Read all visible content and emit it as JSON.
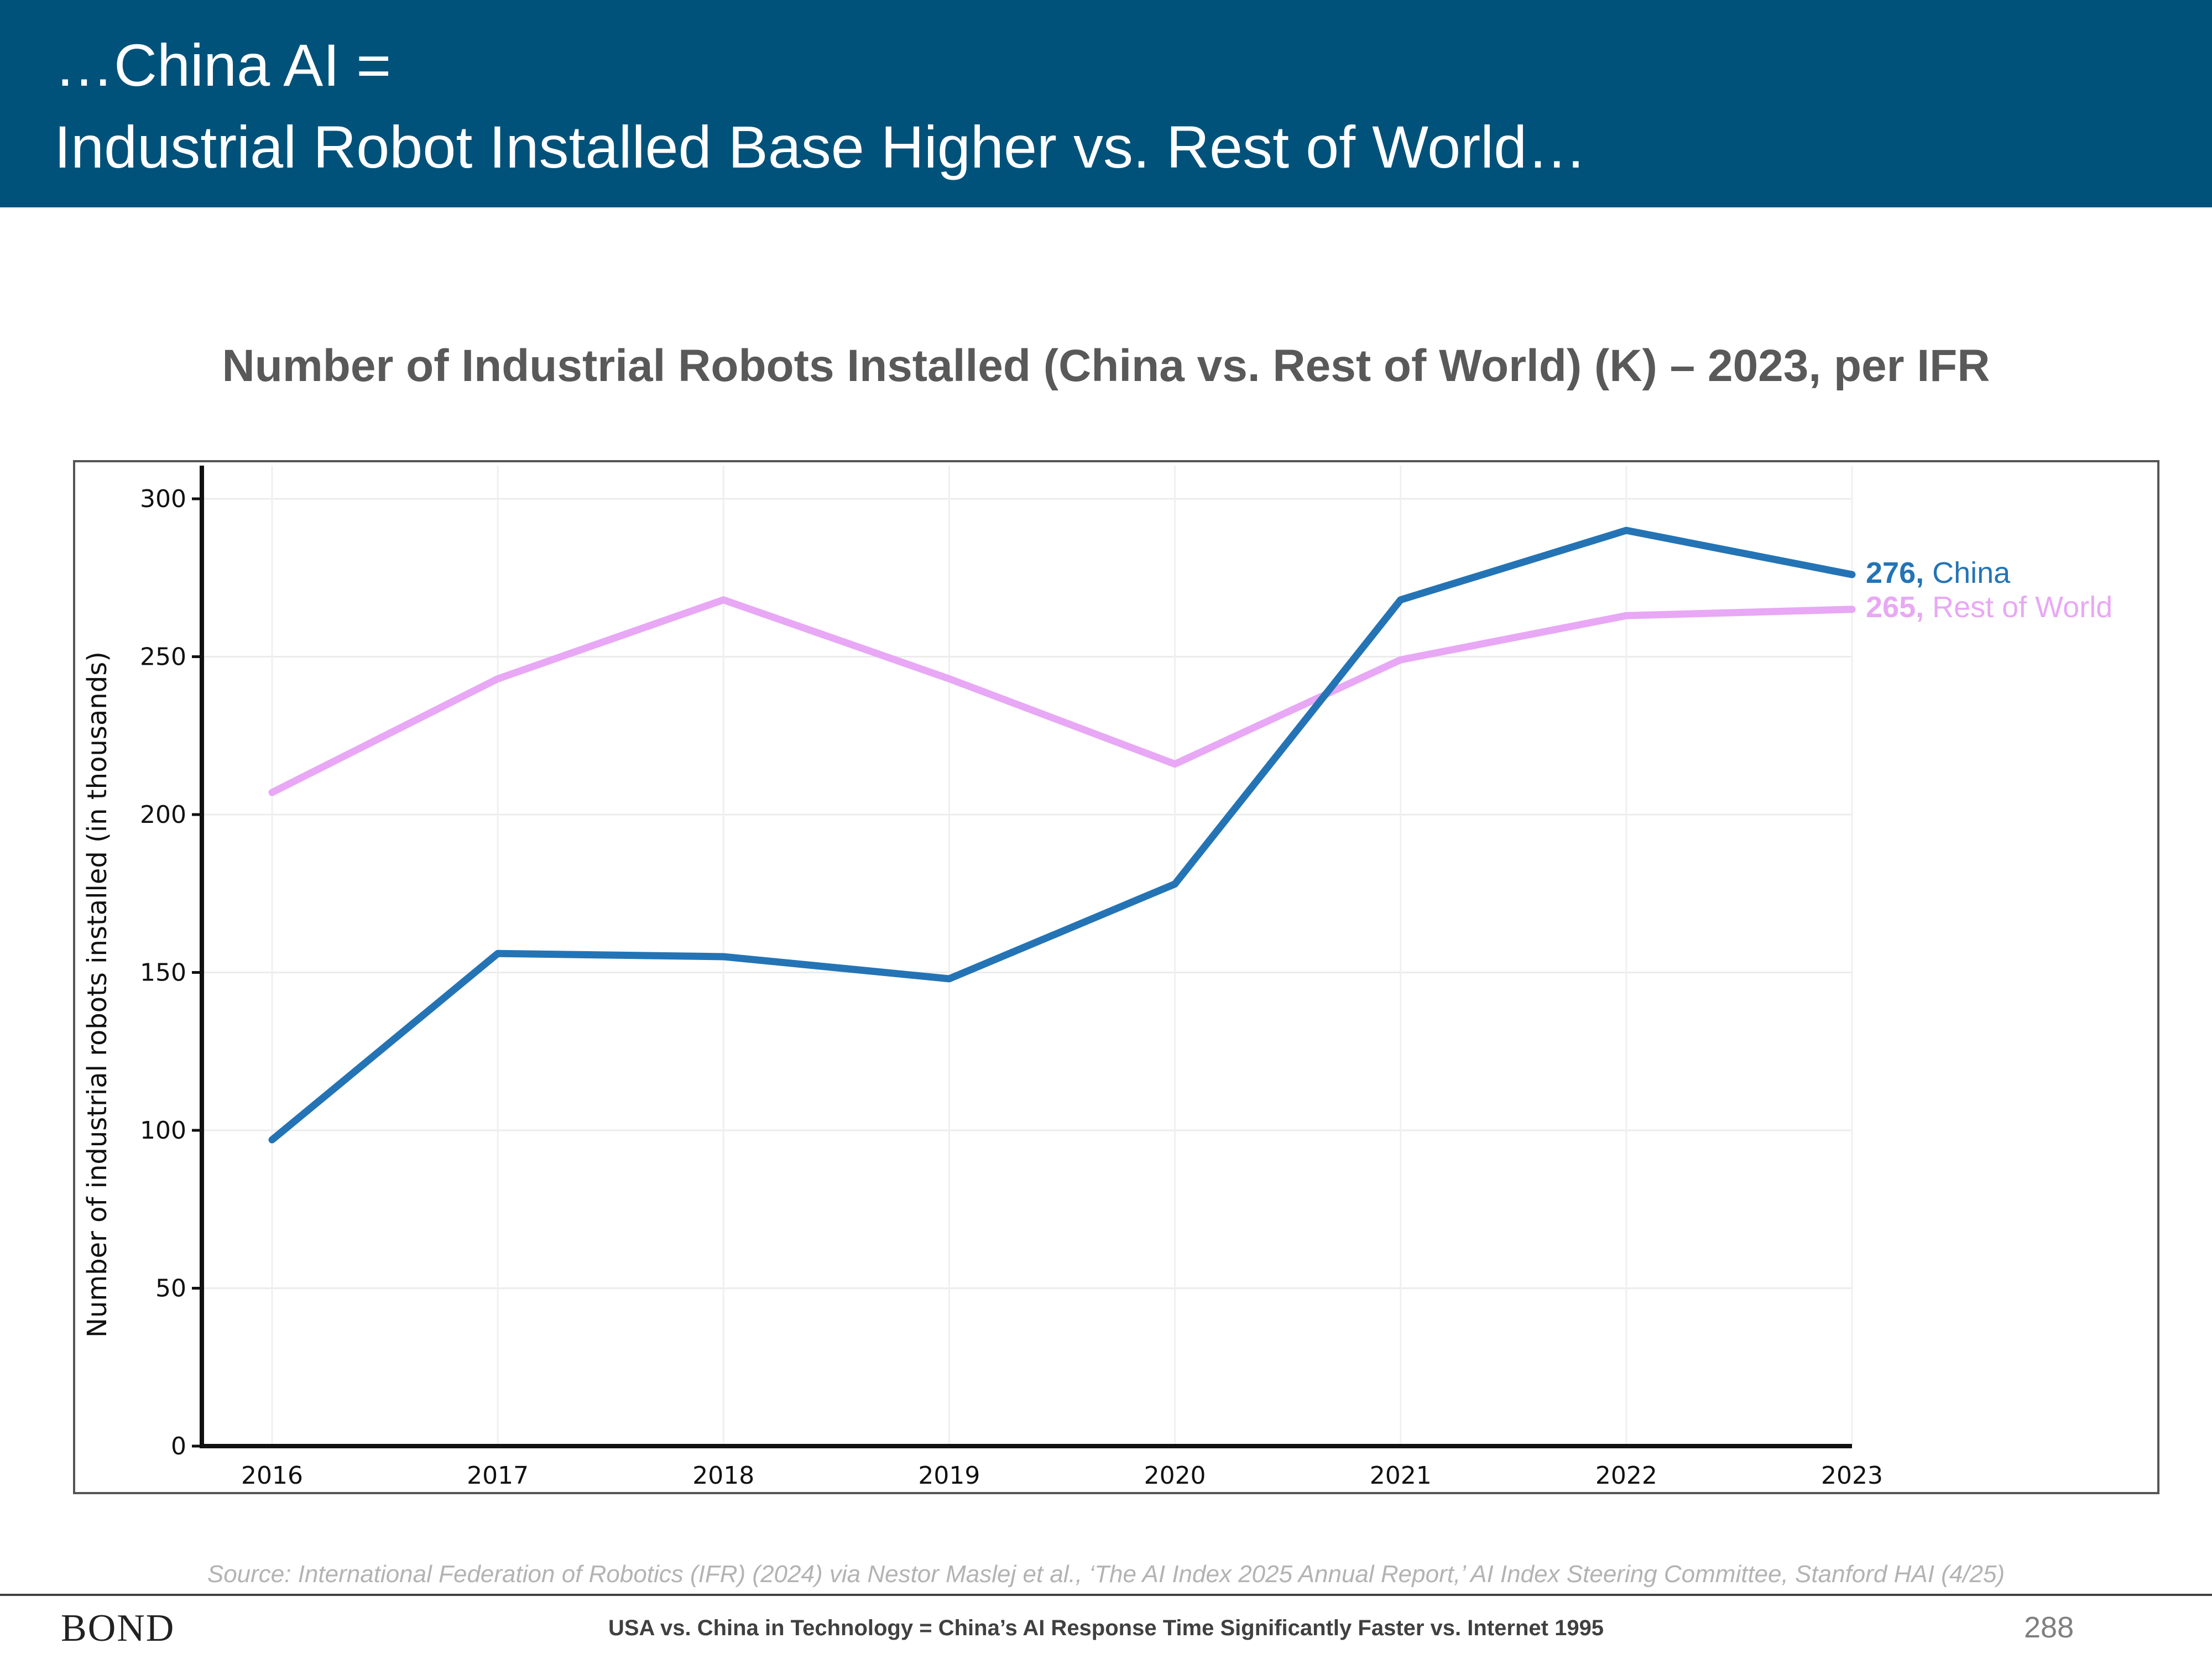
{
  "header": {
    "line1": "…China AI =",
    "line2": "Industrial Robot Installed Base Higher vs. Rest of World…",
    "background": "#01527a"
  },
  "chart_title": "Number of Industrial Robots Installed (China vs. Rest of World) (K) – 2023, per IFR",
  "chart_data": {
    "type": "line",
    "title": "Number of Industrial Robots Installed (China vs. Rest of World) (K) – 2023, per IFR",
    "xlabel": "",
    "ylabel": "Number of industrial robots installed (in thousands)",
    "categories": [
      "2016",
      "2017",
      "2018",
      "2019",
      "2020",
      "2021",
      "2022",
      "2023"
    ],
    "ylim": [
      0,
      300
    ],
    "yticks": [
      0,
      50,
      100,
      150,
      200,
      250,
      300
    ],
    "grid": true,
    "series": [
      {
        "name": "China",
        "color": "#2474b5",
        "values": [
          97,
          156,
          155,
          148,
          178,
          268,
          290,
          276
        ],
        "end_label_value": "276,"
      },
      {
        "name": "Rest of World",
        "color": "#e8a8f5",
        "values": [
          207,
          243,
          268,
          243,
          216,
          249,
          263,
          265
        ],
        "end_label_value": "265,"
      }
    ]
  },
  "source": "Source: International Federation of Robotics (IFR) (2024) via Nestor Maslej et al., ‘The AI Index 2025 Annual Report,’ AI Index Steering Committee, Stanford HAI (4/25)",
  "footer": {
    "logo": "BOND",
    "text": "USA vs. China in Technology = China’s AI Response Time Significantly Faster vs. Internet 1995",
    "page_number": "288"
  }
}
